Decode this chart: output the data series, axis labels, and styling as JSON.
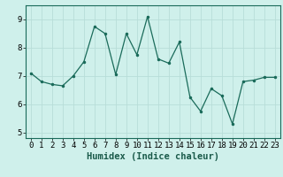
{
  "x": [
    0,
    1,
    2,
    3,
    4,
    5,
    6,
    7,
    8,
    9,
    10,
    11,
    12,
    13,
    14,
    15,
    16,
    17,
    18,
    19,
    20,
    21,
    22,
    23
  ],
  "y": [
    7.1,
    6.8,
    6.7,
    6.65,
    7.0,
    7.5,
    8.75,
    8.5,
    7.05,
    8.5,
    7.75,
    9.1,
    7.6,
    7.45,
    8.2,
    6.25,
    5.75,
    6.55,
    6.3,
    5.3,
    6.8,
    6.85,
    6.95,
    6.95
  ],
  "line_color": "#1a6b5a",
  "marker": ".",
  "marker_size": 3,
  "bg_color": "#cff0eb",
  "grid_color": "#b8ddd8",
  "xlabel": "Humidex (Indice chaleur)",
  "ylim": [
    4.8,
    9.5
  ],
  "xlim": [
    -0.5,
    23.5
  ],
  "yticks": [
    5,
    6,
    7,
    8,
    9
  ],
  "xticks": [
    0,
    1,
    2,
    3,
    4,
    5,
    6,
    7,
    8,
    9,
    10,
    11,
    12,
    13,
    14,
    15,
    16,
    17,
    18,
    19,
    20,
    21,
    22,
    23
  ],
  "xlabel_fontsize": 7.5,
  "tick_fontsize": 6.5
}
